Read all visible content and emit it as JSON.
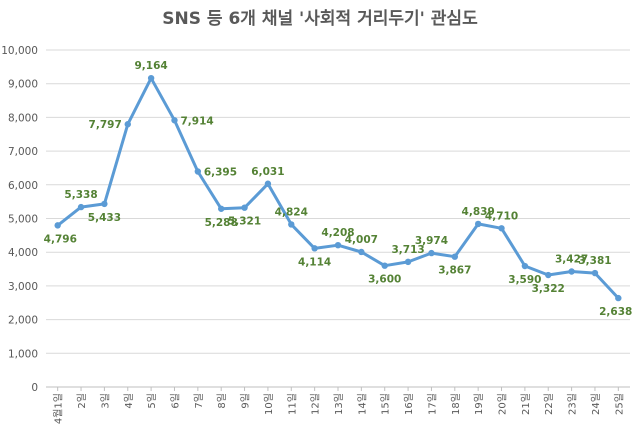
{
  "chart_data": {
    "type": "line",
    "title": "SNS 등 6개 채널 '사회적 거리두기' 관심도",
    "xlabel": "",
    "ylabel": "",
    "ylim": [
      0,
      10000
    ],
    "yticks": [
      0,
      1000,
      2000,
      3000,
      4000,
      5000,
      6000,
      7000,
      8000,
      9000,
      10000
    ],
    "ytick_labels": [
      "0",
      "1,000",
      "2,000",
      "3,000",
      "4,000",
      "5,000",
      "6,000",
      "7,000",
      "8,000",
      "9,000",
      "10,000"
    ],
    "grid": true,
    "legend": "none",
    "categories": [
      "4월1일",
      "2일",
      "3일",
      "4일",
      "5일",
      "6일",
      "7일",
      "8일",
      "9일",
      "10일",
      "11일",
      "12일",
      "13일",
      "14일",
      "15일",
      "16일",
      "17일",
      "18일",
      "19일",
      "20일",
      "21일",
      "22일",
      "23일",
      "24일",
      "25일"
    ],
    "series": [
      {
        "values": [
          4796,
          5338,
          5433,
          7797,
          9164,
          7914,
          6395,
          5288,
          5321,
          6031,
          4824,
          4114,
          4208,
          4007,
          3600,
          3713,
          3974,
          3867,
          4839,
          4710,
          3590,
          3322,
          3427,
          3381,
          2638
        ],
        "labels": [
          "4,796",
          "5,338",
          "5,433",
          "7,797",
          "9,164",
          "7,914",
          "6,395",
          "5,288",
          "5,321",
          "6,031",
          "4,824",
          "4,114",
          "4,208",
          "4,007",
          "3,600",
          "3,713",
          "3,974",
          "3,867",
          "4,839",
          "4,710",
          "3,590",
          "3,322",
          "3,427",
          "3,381",
          "2,638"
        ],
        "label_side": [
          "below",
          "above",
          "below",
          "left",
          "above",
          "right",
          "right",
          "below",
          "below",
          "above",
          "above",
          "below",
          "above",
          "above",
          "below",
          "above",
          "above",
          "below",
          "above",
          "above",
          "below",
          "below",
          "above",
          "above",
          "below"
        ]
      }
    ],
    "colors": {
      "line": "#5b9bd5",
      "data_label": "#548235",
      "axis_text": "#595959",
      "grid": "#d9d9d9"
    }
  }
}
